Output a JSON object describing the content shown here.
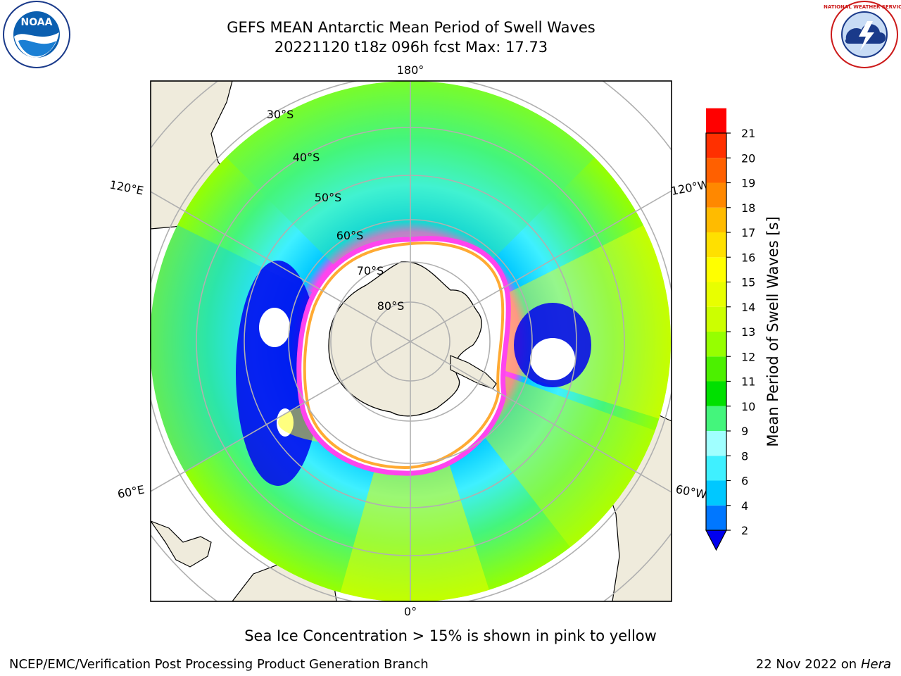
{
  "title": {
    "line1": "GEFS MEAN Antarctic Mean Period of Swell Waves",
    "line2": "20221120 t18z 096h fcst   Max: 17.73"
  },
  "map": {
    "projection": "south-polar-stereographic",
    "longitude_labels": {
      "top": "180°",
      "bottom": "0°",
      "left_upper": "120°E",
      "left_lower": "60°E",
      "right_upper": "120°W",
      "right_lower": "60°W"
    },
    "latitude_labels": [
      "30°S",
      "40°S",
      "50°S",
      "60°S",
      "70°S",
      "80°S"
    ],
    "land_color": "#efebdc",
    "ice_edge_colors": [
      "#ff44ee",
      "#ffaa33"
    ]
  },
  "colorbar": {
    "label": "Mean Period of Swell Waves [s]",
    "ticks": [
      "2",
      "4",
      "6",
      "8",
      "9",
      "10",
      "11",
      "12",
      "13",
      "14",
      "15",
      "16",
      "17",
      "18",
      "19",
      "20",
      "21"
    ],
    "colors": [
      "#0077ff",
      "#00c8ff",
      "#3ff0ff",
      "#a0ffff",
      "#44f57c",
      "#00e000",
      "#4cf000",
      "#96ff00",
      "#ccff00",
      "#e8ff00",
      "#ffff00",
      "#ffe000",
      "#ffbb00",
      "#ff8800",
      "#ff6000",
      "#ff3000",
      "#ff0000"
    ],
    "under_color": "#0000ee"
  },
  "note": "Sea Ice Concentration > 15% is shown in pink to yellow",
  "footer": {
    "left": "NCEP/EMC/Verification Post Processing Product Generation Branch",
    "right_prefix": "22 Nov 2022 on",
    "right_host": "Hera"
  },
  "logos": {
    "left": "NOAA",
    "right": "NATIONAL WEATHER SERVICE"
  }
}
